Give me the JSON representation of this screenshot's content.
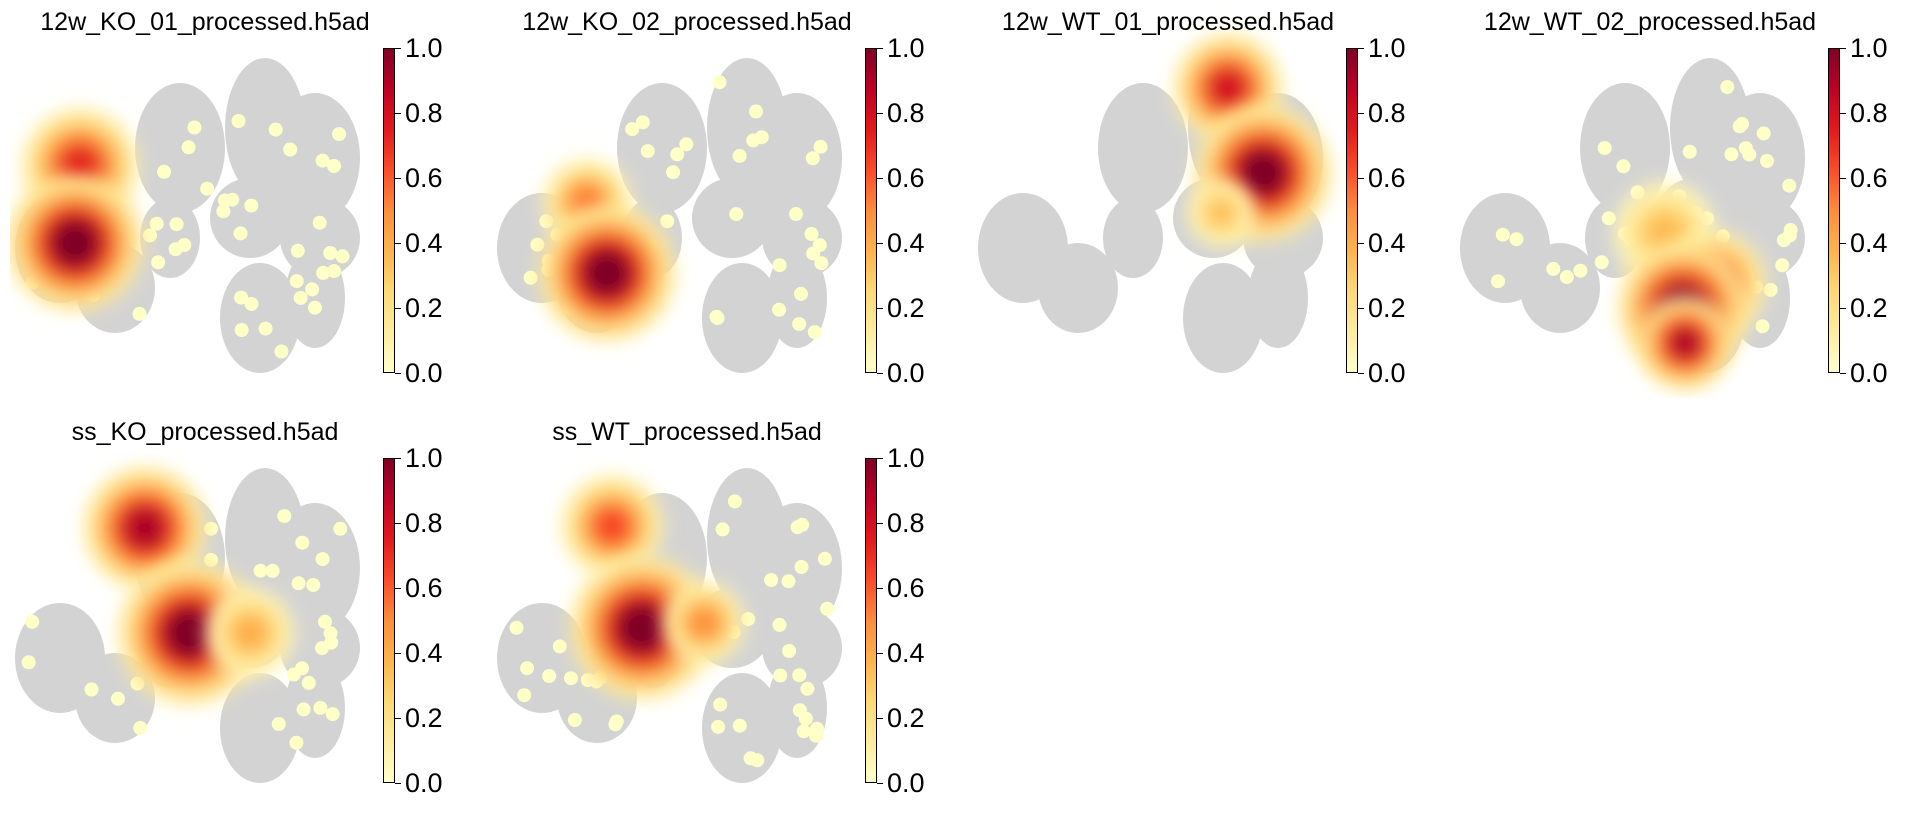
{
  "colorbar": {
    "ticks": [
      "0.0",
      "0.2",
      "0.4",
      "0.6",
      "0.8",
      "1.0"
    ],
    "colormap": "YlOrRd",
    "background_cell_color": "#d3d3d3"
  },
  "panels": [
    {
      "title": "12w_KO_01_processed.h5ad"
    },
    {
      "title": "12w_KO_02_processed.h5ad"
    },
    {
      "title": "12w_WT_01_processed.h5ad"
    },
    {
      "title": "12w_WT_02_processed.h5ad"
    },
    {
      "title": "ss_KO_processed.h5ad"
    },
    {
      "title": "ss_WT_processed.h5ad"
    }
  ],
  "chart_data": {
    "type": "scatter",
    "description_free": true,
    "value_range": [
      0,
      1
    ],
    "grid": false
  }
}
